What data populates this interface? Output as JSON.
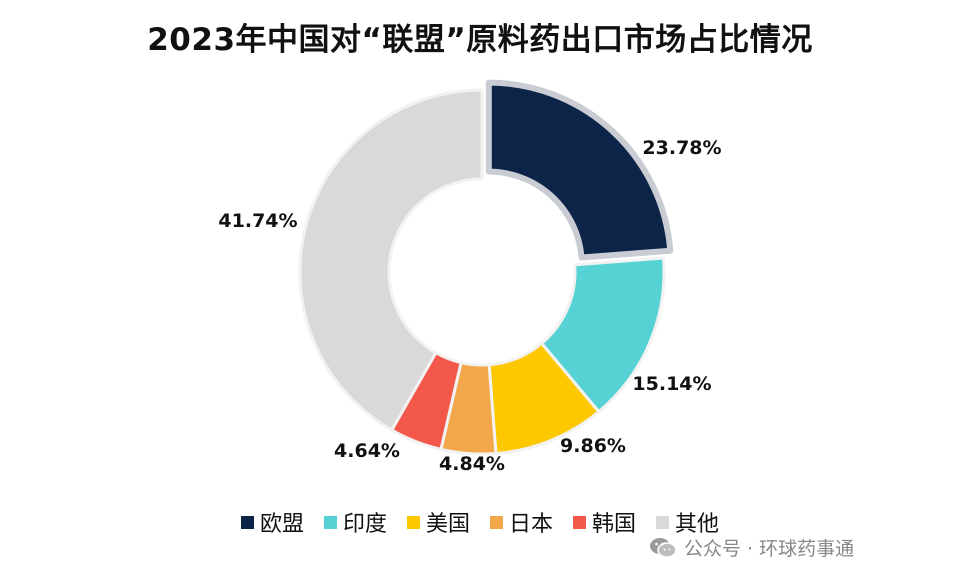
{
  "chart_data": {
    "type": "pie",
    "title": "2023年中国对“联盟”原料药出口市场占比情况",
    "slices": [
      {
        "label": "欧盟",
        "value": 23.78,
        "display": "23.78%",
        "color": "#0c2447"
      },
      {
        "label": "印度",
        "value": 15.14,
        "display": "15.14%",
        "color": "#56d1d4"
      },
      {
        "label": "美国",
        "value": 9.86,
        "display": "9.86%",
        "color": "#fdc800"
      },
      {
        "label": "日本",
        "value": 4.84,
        "display": "4.84%",
        "color": "#f2a74a"
      },
      {
        "label": "韩国",
        "value": 4.64,
        "display": "4.64%",
        "color": "#f4584a"
      },
      {
        "label": "其他",
        "value": 41.74,
        "display": "41.74%",
        "color": "#d9d9d9"
      }
    ],
    "donut": true,
    "legend_position": "bottom"
  },
  "watermark": {
    "icon": "wechat-icon",
    "text": "公众号 · 环球药事通"
  }
}
